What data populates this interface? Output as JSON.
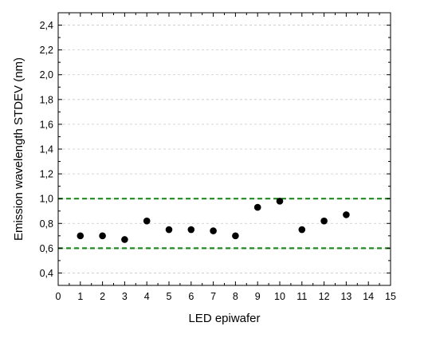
{
  "chart_data": {
    "type": "scatter",
    "xlabel": "LED epiwafer",
    "ylabel": "Emission wavelength STDEV (nm)",
    "xlim": [
      0,
      15
    ],
    "ylim": [
      0.3,
      2.5
    ],
    "x_ticks": [
      0,
      1,
      2,
      3,
      4,
      5,
      6,
      7,
      8,
      9,
      10,
      11,
      12,
      13,
      14,
      15
    ],
    "y_ticks": [
      0.4,
      0.6,
      0.8,
      1.0,
      1.2,
      1.4,
      1.6,
      1.8,
      2.0,
      2.2,
      2.4
    ],
    "y_tick_labels": [
      "0,4",
      "0,6",
      "0,8",
      "1,0",
      "1,2",
      "1,4",
      "1,6",
      "1,8",
      "2,0",
      "2,2",
      "2,4"
    ],
    "grid": "horizontal dashed",
    "series": [
      {
        "color": "#000000",
        "points": [
          {
            "x": 1,
            "y": 0.7
          },
          {
            "x": 2,
            "y": 0.7
          },
          {
            "x": 3,
            "y": 0.67
          },
          {
            "x": 4,
            "y": 0.82
          },
          {
            "x": 5,
            "y": 0.75
          },
          {
            "x": 6,
            "y": 0.75
          },
          {
            "x": 7,
            "y": 0.74
          },
          {
            "x": 8,
            "y": 0.7
          },
          {
            "x": 9,
            "y": 0.93
          },
          {
            "x": 10,
            "y": 0.98
          },
          {
            "x": 11,
            "y": 0.75
          },
          {
            "x": 12,
            "y": 0.82
          },
          {
            "x": 13,
            "y": 0.87
          }
        ]
      }
    ],
    "reference_lines": [
      {
        "y": 1.0,
        "color": "#1e8c1e",
        "style": "dashed"
      },
      {
        "y": 0.6,
        "color": "#1e8c1e",
        "style": "dashed"
      }
    ]
  }
}
